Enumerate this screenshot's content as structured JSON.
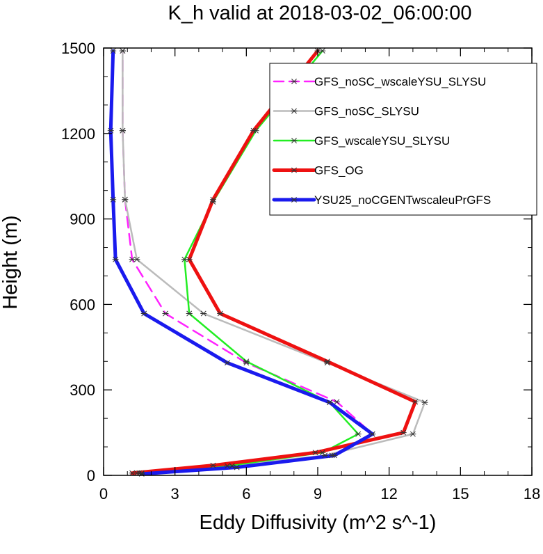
{
  "chart_data": {
    "type": "line",
    "title": "K_h valid at 2018-03-02_06:00:00",
    "xlabel": "Eddy Diffusivity (m^2 s^-1)",
    "ylabel": "Height (m)",
    "xlim": [
      0,
      18
    ],
    "ylim": [
      0,
      1500
    ],
    "xticks": [
      0,
      3,
      6,
      9,
      12,
      15,
      18
    ],
    "yticks": [
      0,
      300,
      600,
      900,
      1200,
      1500
    ],
    "xtick_labels": [
      "0",
      "3",
      "6",
      "9",
      "12",
      "15",
      "18"
    ],
    "ytick_labels": [
      "0",
      "300",
      "600",
      "900",
      "1200",
      "1500"
    ],
    "grid": false,
    "legend_position": "top-right",
    "series": [
      {
        "name": "GFS_noSC_wscaleYSU_SLYSU",
        "color": "#ff22ff",
        "dash": "dashed",
        "width": "medium",
        "points": [
          [
            1.6,
            8
          ],
          [
            5.4,
            33
          ],
          [
            9.6,
            70
          ],
          [
            11.3,
            145
          ],
          [
            9.8,
            258
          ],
          [
            6.0,
            395
          ],
          [
            2.6,
            568
          ],
          [
            1.2,
            758
          ],
          [
            0.9,
            968
          ],
          [
            0.8,
            1210
          ],
          [
            0.8,
            1490
          ]
        ]
      },
      {
        "name": "GFS_noSC_SLYSU",
        "color": "#bbbbbb",
        "dash": "solid",
        "width": "medium",
        "points": [
          [
            1.5,
            8
          ],
          [
            5.4,
            33
          ],
          [
            9.3,
            70
          ],
          [
            13.0,
            145
          ],
          [
            13.5,
            256
          ],
          [
            9.4,
            395
          ],
          [
            4.2,
            568
          ],
          [
            1.4,
            758
          ],
          [
            0.9,
            968
          ],
          [
            0.8,
            1210
          ],
          [
            0.8,
            1490
          ]
        ]
      },
      {
        "name": "GFS_wscaleYSU_SLYSU",
        "color": "#22ee22",
        "dash": "solid",
        "width": "medium",
        "points": [
          [
            1.4,
            8
          ],
          [
            5.2,
            33
          ],
          [
            9.2,
            80
          ],
          [
            10.7,
            145
          ],
          [
            9.5,
            256
          ],
          [
            6.0,
            400
          ],
          [
            3.6,
            568
          ],
          [
            3.4,
            758
          ],
          [
            4.6,
            960
          ],
          [
            6.4,
            1210
          ],
          [
            9.2,
            1490
          ]
        ]
      },
      {
        "name": "GFS_OG",
        "color": "#ee1111",
        "dash": "solid",
        "width": "thick",
        "points": [
          [
            1.2,
            8
          ],
          [
            4.6,
            35
          ],
          [
            8.9,
            80
          ],
          [
            12.6,
            150
          ],
          [
            13.1,
            258
          ],
          [
            9.4,
            400
          ],
          [
            4.9,
            568
          ],
          [
            3.6,
            758
          ],
          [
            4.6,
            968
          ],
          [
            6.3,
            1210
          ],
          [
            9.0,
            1490
          ]
        ]
      },
      {
        "name": "YSU25_noCGENTwscaleuPrGFS",
        "color": "#1a1aee",
        "dash": "solid",
        "width": "thick",
        "points": [
          [
            1.6,
            5
          ],
          [
            5.6,
            28
          ],
          [
            9.7,
            70
          ],
          [
            11.3,
            145
          ],
          [
            9.5,
            256
          ],
          [
            5.2,
            395
          ],
          [
            1.7,
            568
          ],
          [
            0.5,
            758
          ],
          [
            0.4,
            968
          ],
          [
            0.3,
            1210
          ],
          [
            0.4,
            1490
          ]
        ]
      }
    ]
  }
}
